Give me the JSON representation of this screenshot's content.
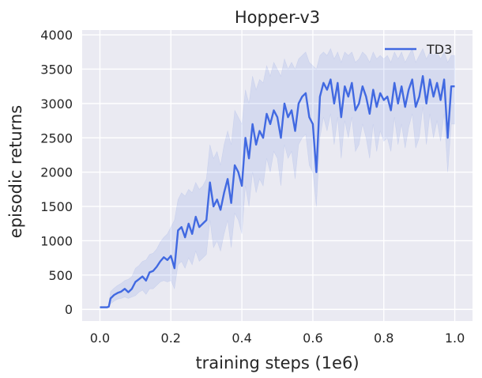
{
  "chart_data": {
    "type": "line",
    "title": "Hopper-v3",
    "xlabel": "training steps (1e6)",
    "ylabel": "episodic returns",
    "xlim": [
      -0.05,
      1.05
    ],
    "ylim": [
      -170,
      4070
    ],
    "xticks": [
      0.0,
      0.2,
      0.4,
      0.6,
      0.8,
      1.0
    ],
    "xtick_labels": [
      "0.0",
      "0.2",
      "0.4",
      "0.6",
      "0.8",
      "1.0"
    ],
    "yticks": [
      0,
      500,
      1000,
      1500,
      2000,
      2500,
      3000,
      3500,
      4000
    ],
    "ytick_labels": [
      "0",
      "500",
      "1000",
      "1500",
      "2000",
      "2500",
      "3000",
      "3500",
      "4000"
    ],
    "grid": true,
    "legend_position": "top-right",
    "background_color": "#eaeaf2",
    "series": [
      {
        "name": "TD3",
        "color": "#4169e1",
        "x": [
          0.0,
          0.01,
          0.02,
          0.025,
          0.03,
          0.04,
          0.05,
          0.06,
          0.07,
          0.08,
          0.09,
          0.1,
          0.11,
          0.12,
          0.13,
          0.14,
          0.15,
          0.16,
          0.17,
          0.18,
          0.19,
          0.2,
          0.21,
          0.22,
          0.23,
          0.24,
          0.25,
          0.26,
          0.27,
          0.28,
          0.29,
          0.3,
          0.31,
          0.32,
          0.33,
          0.34,
          0.35,
          0.36,
          0.37,
          0.38,
          0.39,
          0.4,
          0.41,
          0.42,
          0.43,
          0.44,
          0.45,
          0.46,
          0.47,
          0.48,
          0.49,
          0.5,
          0.51,
          0.52,
          0.53,
          0.54,
          0.55,
          0.56,
          0.57,
          0.58,
          0.59,
          0.6,
          0.61,
          0.62,
          0.63,
          0.64,
          0.65,
          0.66,
          0.67,
          0.68,
          0.69,
          0.7,
          0.71,
          0.72,
          0.73,
          0.74,
          0.75,
          0.76,
          0.77,
          0.78,
          0.79,
          0.8,
          0.81,
          0.82,
          0.83,
          0.84,
          0.85,
          0.86,
          0.87,
          0.88,
          0.89,
          0.9,
          0.91,
          0.92,
          0.93,
          0.94,
          0.95,
          0.96,
          0.97,
          0.98,
          0.99,
          1.0
        ],
        "y": [
          30,
          30,
          30,
          40,
          160,
          210,
          240,
          260,
          300,
          250,
          300,
          400,
          440,
          480,
          420,
          540,
          560,
          620,
          700,
          760,
          720,
          780,
          600,
          1150,
          1200,
          1050,
          1250,
          1100,
          1350,
          1200,
          1250,
          1300,
          1850,
          1500,
          1600,
          1450,
          1700,
          1900,
          1550,
          2100,
          2000,
          1800,
          2500,
          2200,
          2700,
          2400,
          2600,
          2500,
          2850,
          2700,
          2900,
          2800,
          2500,
          3000,
          2800,
          2900,
          2600,
          3000,
          3100,
          3150,
          2800,
          2700,
          2000,
          3100,
          3300,
          3200,
          3350,
          3000,
          3300,
          2800,
          3250,
          3100,
          3300,
          2900,
          3000,
          3250,
          3100,
          2850,
          3200,
          2950,
          3150,
          3050,
          3100,
          2900,
          3300,
          3000,
          3250,
          2950,
          3200,
          3350,
          2950,
          3100,
          3400,
          3000,
          3350,
          3100,
          3300,
          3050,
          3350,
          2500,
          3250,
          3250
        ],
        "band_upper": [
          40,
          40,
          40,
          50,
          260,
          310,
          350,
          380,
          420,
          440,
          480,
          600,
          640,
          700,
          720,
          800,
          820,
          880,
          980,
          1050,
          1100,
          1200,
          1300,
          1600,
          1700,
          1650,
          1750,
          1700,
          1850,
          1750,
          1800,
          1900,
          2400,
          2200,
          2300,
          2100,
          2400,
          2600,
          2400,
          2900,
          2800,
          2700,
          3200,
          3000,
          3400,
          3200,
          3350,
          3300,
          3550,
          3400,
          3600,
          3500,
          3400,
          3650,
          3500,
          3600,
          3500,
          3650,
          3700,
          3750,
          3600,
          3550,
          3500,
          3700,
          3750,
          3700,
          3800,
          3650,
          3750,
          3600,
          3750,
          3700,
          3750,
          3600,
          3650,
          3750,
          3700,
          3600,
          3750,
          3650,
          3700,
          3650,
          3700,
          3600,
          3750,
          3650,
          3750,
          3600,
          3700,
          3800,
          3600,
          3700,
          3800,
          3650,
          3750,
          3700,
          3750,
          3650,
          3750,
          3600,
          3700,
          3700
        ],
        "band_lower": [
          20,
          20,
          20,
          30,
          80,
          120,
          150,
          160,
          180,
          160,
          180,
          200,
          250,
          280,
          220,
          300,
          300,
          350,
          400,
          420,
          400,
          420,
          300,
          650,
          700,
          600,
          750,
          650,
          850,
          700,
          750,
          800,
          1300,
          900,
          1000,
          850,
          1100,
          1300,
          900,
          1400,
          1300,
          1100,
          1800,
          1500,
          2000,
          1700,
          1900,
          1800,
          2200,
          2000,
          2300,
          2200,
          1800,
          2400,
          2200,
          2300,
          1900,
          2400,
          2500,
          2550,
          2100,
          2000,
          1500,
          2500,
          2800,
          2600,
          2850,
          2400,
          2800,
          2200,
          2750,
          2500,
          2800,
          2300,
          2400,
          2700,
          2500,
          2200,
          2700,
          2300,
          2600,
          2450,
          2500,
          2300,
          2800,
          2400,
          2700,
          2350,
          2650,
          2850,
          2350,
          2500,
          2950,
          2400,
          2850,
          2500,
          2750,
          2450,
          2850,
          2000,
          2700,
          2700
        ]
      }
    ]
  }
}
